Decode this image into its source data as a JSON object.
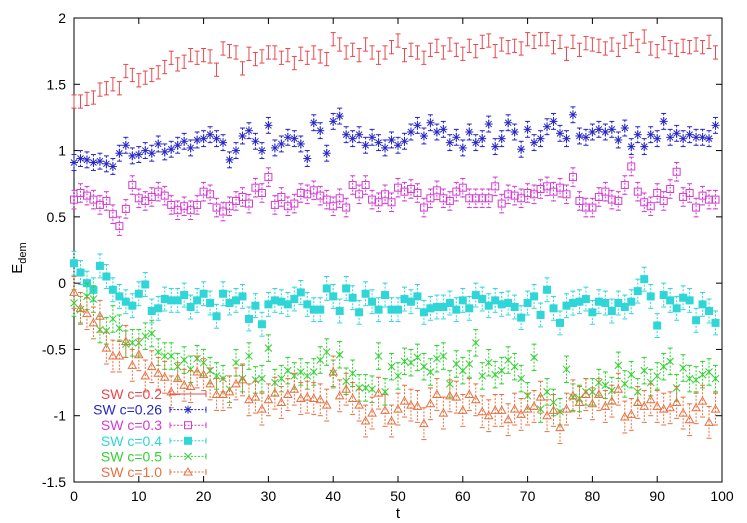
{
  "chart_data": {
    "type": "scatter",
    "error_bars": true,
    "xlabel": "t",
    "ylabel_main": "E",
    "ylabel_sub": "dem",
    "xlim": [
      0,
      100
    ],
    "ylim": [
      -1.5,
      2
    ],
    "x_ticks": [
      "0",
      "10",
      "20",
      "30",
      "40",
      "50",
      "60",
      "70",
      "80",
      "90",
      "100"
    ],
    "y_ticks": [
      "-1.5",
      "-1",
      "-0.5",
      "0",
      "0.5",
      "1",
      "1.5",
      "2"
    ],
    "grid": false,
    "legend_position": "bottom-left",
    "x": [
      0,
      1,
      2,
      3,
      4,
      5,
      6,
      7,
      8,
      9,
      10,
      11,
      12,
      13,
      14,
      15,
      16,
      17,
      18,
      19,
      20,
      21,
      22,
      23,
      24,
      25,
      26,
      27,
      28,
      29,
      30,
      31,
      32,
      33,
      34,
      35,
      36,
      37,
      38,
      39,
      40,
      41,
      42,
      43,
      44,
      45,
      46,
      47,
      48,
      49,
      50,
      51,
      52,
      53,
      54,
      55,
      56,
      57,
      58,
      59,
      60,
      61,
      62,
      63,
      64,
      65,
      66,
      67,
      68,
      69,
      70,
      71,
      72,
      73,
      74,
      75,
      76,
      77,
      78,
      79,
      80,
      81,
      82,
      83,
      84,
      85,
      86,
      87,
      88,
      89,
      90,
      91,
      92,
      93,
      94,
      95,
      96,
      97,
      98,
      99
    ],
    "series": [
      {
        "name": "SW c=0.2",
        "color": "#e8474c",
        "marker": "errorbar",
        "error": 0.05,
        "values": [
          1.37,
          1.37,
          1.39,
          1.4,
          1.46,
          1.47,
          1.5,
          1.47,
          1.6,
          1.57,
          1.53,
          1.55,
          1.57,
          1.59,
          1.63,
          1.7,
          1.65,
          1.67,
          1.72,
          1.7,
          1.72,
          1.71,
          1.61,
          1.77,
          1.75,
          1.74,
          1.62,
          1.73,
          1.69,
          1.71,
          1.74,
          1.74,
          1.7,
          1.72,
          1.66,
          1.73,
          1.7,
          1.74,
          1.71,
          1.69,
          1.84,
          1.8,
          1.74,
          1.76,
          1.72,
          1.8,
          1.74,
          1.7,
          1.74,
          1.78,
          1.83,
          1.72,
          1.76,
          1.74,
          1.7,
          1.76,
          1.79,
          1.74,
          1.8,
          1.76,
          1.73,
          1.79,
          1.75,
          1.82,
          1.83,
          1.75,
          1.8,
          1.78,
          1.79,
          1.77,
          1.84,
          1.82,
          1.84,
          1.84,
          1.78,
          1.82,
          1.73,
          1.82,
          1.76,
          1.81,
          1.8,
          1.79,
          1.77,
          1.8,
          1.76,
          1.82,
          1.84,
          1.79,
          1.86,
          1.77,
          1.75,
          1.81,
          1.78,
          1.76,
          1.79,
          1.78,
          1.8,
          1.78,
          1.82,
          1.74
        ]
      },
      {
        "name": "SW c=0.26",
        "color": "#2626c8",
        "marker": "star",
        "error": 0.06,
        "values": [
          0.91,
          0.94,
          0.93,
          0.91,
          0.92,
          0.9,
          0.88,
          0.98,
          1.04,
          0.96,
          0.97,
          1.0,
          0.98,
          1.05,
          0.99,
          1.01,
          1.04,
          1.07,
          1.02,
          1.08,
          1.09,
          1.12,
          1.09,
          1.06,
          0.93,
          1.0,
          1.11,
          1.15,
          1.07,
          1.0,
          1.19,
          1.02,
          1.05,
          1.1,
          1.09,
          1.05,
          0.94,
          1.21,
          1.15,
          0.98,
          1.22,
          1.26,
          1.12,
          1.09,
          1.12,
          1.04,
          1.1,
          1.06,
          1.02,
          1.08,
          1.04,
          1.07,
          1.14,
          1.19,
          1.11,
          1.21,
          1.14,
          1.16,
          1.06,
          1.1,
          1.02,
          1.14,
          1.06,
          1.09,
          1.2,
          1.03,
          1.09,
          1.21,
          1.14,
          1.01,
          1.16,
          1.06,
          1.09,
          1.18,
          1.22,
          1.13,
          1.09,
          1.27,
          1.11,
          1.1,
          1.14,
          1.16,
          1.14,
          1.16,
          1.08,
          1.17,
          1.03,
          1.12,
          1.03,
          1.12,
          1.09,
          1.22,
          1.1,
          1.13,
          1.09,
          1.12,
          1.1,
          1.1,
          1.09,
          1.19
        ]
      },
      {
        "name": "SW c=0.3",
        "color": "#d23cd2",
        "marker": "square-open",
        "error": 0.07,
        "values": [
          0.63,
          0.68,
          0.66,
          0.63,
          0.59,
          0.62,
          0.52,
          0.43,
          0.56,
          0.74,
          0.64,
          0.62,
          0.65,
          0.69,
          0.66,
          0.59,
          0.55,
          0.58,
          0.55,
          0.59,
          0.69,
          0.67,
          0.57,
          0.54,
          0.58,
          0.62,
          0.65,
          0.6,
          0.72,
          0.68,
          0.8,
          0.59,
          0.65,
          0.58,
          0.6,
          0.68,
          0.67,
          0.7,
          0.66,
          0.63,
          0.58,
          0.64,
          0.57,
          0.74,
          0.67,
          0.74,
          0.63,
          0.61,
          0.67,
          0.61,
          0.72,
          0.69,
          0.71,
          0.68,
          0.57,
          0.64,
          0.7,
          0.64,
          0.62,
          0.69,
          0.72,
          0.64,
          0.64,
          0.64,
          0.64,
          0.73,
          0.6,
          0.67,
          0.66,
          0.64,
          0.68,
          0.67,
          0.71,
          0.73,
          0.69,
          0.72,
          0.67,
          0.8,
          0.62,
          0.57,
          0.57,
          0.65,
          0.69,
          0.63,
          0.62,
          0.74,
          0.88,
          0.69,
          0.61,
          0.58,
          0.68,
          0.62,
          0.71,
          0.84,
          0.65,
          0.68,
          0.57,
          0.66,
          0.63,
          0.63
        ]
      },
      {
        "name": "SW c=0.4",
        "color": "#2ed6d8",
        "marker": "square-filled",
        "error": 0.09,
        "values": [
          0.15,
          0.08,
          0.0,
          -0.05,
          0.13,
          0.05,
          -0.05,
          -0.1,
          -0.14,
          -0.17,
          -0.08,
          -0.01,
          -0.21,
          -0.19,
          -0.12,
          -0.13,
          -0.13,
          -0.09,
          -0.18,
          -0.13,
          -0.08,
          -0.15,
          -0.25,
          -0.08,
          -0.15,
          -0.13,
          -0.1,
          -0.27,
          -0.17,
          -0.31,
          -0.16,
          -0.13,
          -0.14,
          -0.16,
          -0.12,
          -0.07,
          -0.16,
          -0.2,
          -0.2,
          -0.04,
          -0.1,
          -0.21,
          -0.04,
          -0.11,
          -0.22,
          -0.08,
          -0.14,
          -0.2,
          -0.09,
          -0.2,
          -0.2,
          -0.12,
          -0.14,
          -0.1,
          -0.22,
          -0.19,
          -0.18,
          -0.18,
          -0.15,
          -0.2,
          -0.13,
          -0.19,
          -0.09,
          -0.12,
          -0.17,
          -0.13,
          -0.16,
          -0.15,
          -0.18,
          -0.26,
          -0.15,
          -0.1,
          -0.24,
          -0.05,
          -0.19,
          -0.3,
          -0.17,
          -0.15,
          -0.14,
          -0.12,
          -0.22,
          -0.14,
          -0.15,
          -0.21,
          -0.15,
          -0.18,
          -0.14,
          -0.06,
          0.03,
          -0.1,
          -0.32,
          -0.09,
          -0.13,
          -0.19,
          -0.11,
          -0.13,
          -0.28,
          -0.16,
          -0.21,
          -0.3
        ]
      },
      {
        "name": "SW c=0.5",
        "color": "#30d230",
        "marker": "cross",
        "error": 0.1,
        "values": [
          -0.15,
          -0.2,
          -0.1,
          -0.12,
          -0.35,
          -0.36,
          -0.27,
          -0.34,
          -0.46,
          -0.45,
          -0.45,
          -0.4,
          -0.38,
          -0.52,
          -0.55,
          -0.55,
          -0.63,
          -0.58,
          -0.65,
          -0.57,
          -0.6,
          -0.66,
          -0.7,
          -0.72,
          -0.8,
          -0.6,
          -0.72,
          -0.55,
          -0.73,
          -0.72,
          -0.49,
          -0.75,
          -0.72,
          -0.66,
          -0.7,
          -0.67,
          -0.7,
          -0.67,
          -0.58,
          -0.52,
          -0.68,
          -0.54,
          -0.74,
          -0.68,
          -0.79,
          -0.79,
          -0.8,
          -0.55,
          -0.82,
          -0.63,
          -0.7,
          -0.59,
          -0.6,
          -0.56,
          -0.63,
          -0.67,
          -0.57,
          -0.55,
          -0.76,
          -0.61,
          -0.66,
          -0.61,
          -0.45,
          -0.7,
          -0.6,
          -0.69,
          -0.66,
          -0.58,
          -0.63,
          -0.72,
          -0.85,
          -0.56,
          -0.95,
          -0.82,
          -0.9,
          -0.97,
          -0.65,
          -0.86,
          -0.87,
          -0.82,
          -0.82,
          -0.75,
          -0.77,
          -0.81,
          -0.62,
          -0.76,
          -0.69,
          -0.82,
          -0.66,
          -0.75,
          -0.7,
          -0.63,
          -0.59,
          -0.79,
          -0.64,
          -0.72,
          -0.73,
          -0.69,
          -0.67,
          -0.72
        ]
      },
      {
        "name": "SW c=1.0",
        "color": "#e87040",
        "marker": "triangle-open",
        "error": 0.12,
        "values": [
          -0.07,
          -0.19,
          -0.23,
          -0.3,
          -0.25,
          -0.49,
          -0.55,
          -0.55,
          -0.44,
          -0.62,
          -0.54,
          -0.7,
          -0.63,
          -0.68,
          -0.71,
          -0.82,
          -0.72,
          -0.77,
          -0.78,
          -0.67,
          -0.69,
          -0.76,
          -0.84,
          -0.84,
          -0.82,
          -0.76,
          -0.73,
          -0.88,
          -0.86,
          -0.95,
          -0.88,
          -0.83,
          -0.9,
          -0.84,
          -0.8,
          -0.87,
          -0.86,
          -0.87,
          -0.88,
          -0.92,
          -0.67,
          -0.85,
          -0.8,
          -0.87,
          -0.92,
          -1.04,
          -0.98,
          -0.83,
          -0.96,
          -1.04,
          -0.95,
          -0.89,
          -0.92,
          -0.93,
          -1.06,
          -0.91,
          -0.84,
          -0.98,
          -0.85,
          -0.86,
          -0.96,
          -0.84,
          -0.88,
          -0.97,
          -1.0,
          -0.96,
          -0.96,
          -1.03,
          -0.95,
          -0.99,
          -0.95,
          -0.93,
          -0.86,
          -1.0,
          -0.96,
          -1.09,
          -0.95,
          -0.85,
          -0.9,
          -0.84,
          -0.91,
          -0.84,
          -0.93,
          -0.89,
          -0.8,
          -1.01,
          -0.99,
          -0.9,
          -0.93,
          -0.88,
          -0.93,
          -0.95,
          -0.94,
          -0.9,
          -0.98,
          -1.03,
          -0.94,
          -0.89,
          -1.05,
          -0.95
        ]
      }
    ]
  }
}
